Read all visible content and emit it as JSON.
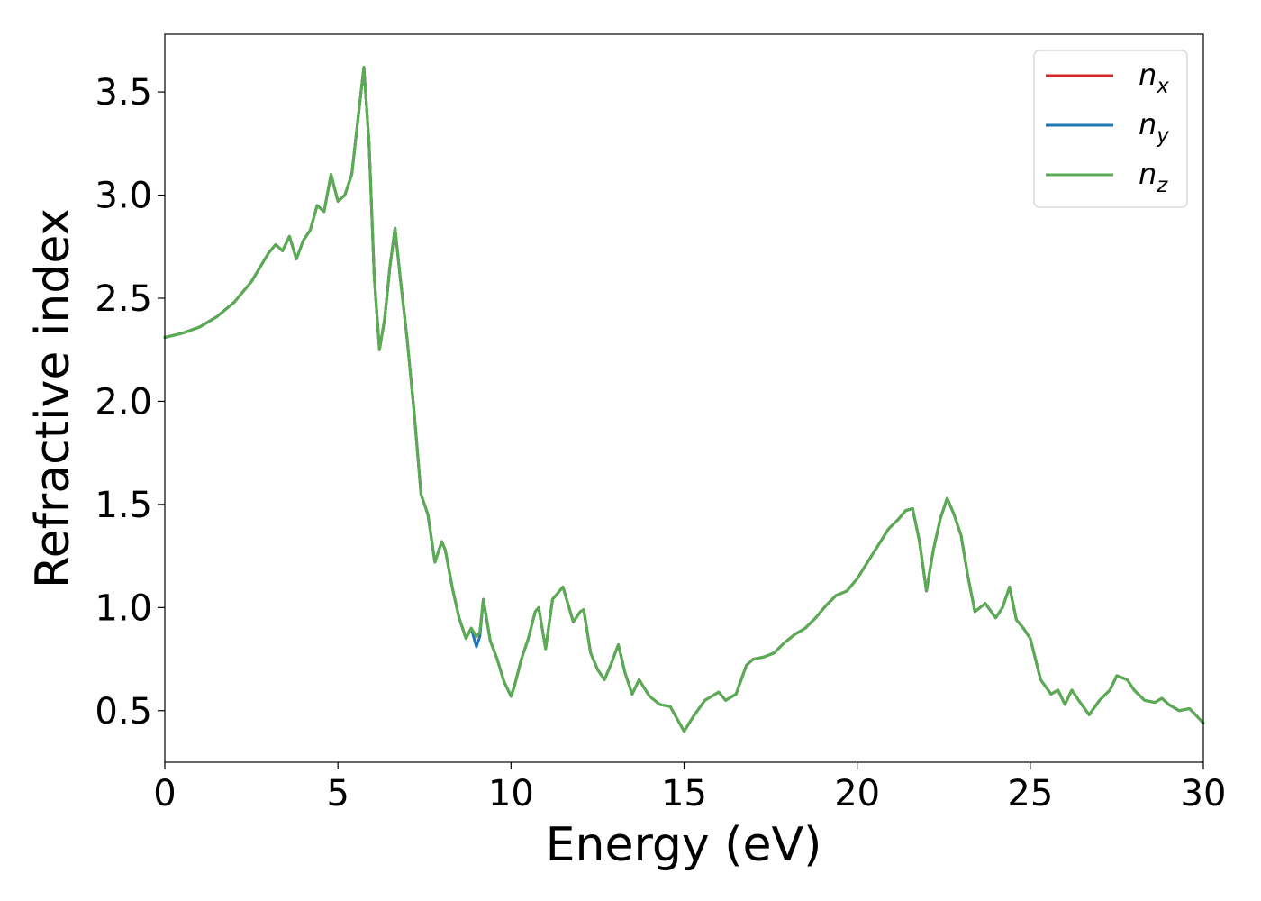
{
  "chart_data": {
    "type": "line",
    "title": "",
    "xlabel": "Energy (eV)",
    "ylabel": "Refractive index",
    "xlim": [
      0,
      30
    ],
    "ylim": [
      0.25,
      3.78
    ],
    "xticks": [
      "0",
      "5",
      "10",
      "15",
      "20",
      "25",
      "30"
    ],
    "xtick_values": [
      0,
      5,
      10,
      15,
      20,
      25,
      30
    ],
    "yticks": [
      "0.5",
      "1.0",
      "1.5",
      "2.0",
      "2.5",
      "3.0",
      "3.5"
    ],
    "ytick_values": [
      0.5,
      1.0,
      1.5,
      2.0,
      2.5,
      3.0,
      3.5
    ],
    "grid": false,
    "legend_position": "top-right",
    "series": [
      {
        "name": "n",
        "subscript": "x",
        "color": "#d62728",
        "x": [
          0,
          0.5,
          1,
          1.5,
          2,
          2.5,
          3,
          3.2,
          3.4,
          3.6,
          3.8,
          4,
          4.2,
          4.4,
          4.6,
          4.8,
          5,
          5.2,
          5.4,
          5.6,
          5.75,
          5.9,
          6.05,
          6.2,
          6.35,
          6.5,
          6.65,
          6.8,
          7,
          7.2,
          7.4,
          7.6,
          7.8,
          8,
          8.1,
          8.3,
          8.5,
          8.7,
          8.85,
          9,
          9.1,
          9.2,
          9.4,
          9.6,
          9.8,
          10,
          10.1,
          10.3,
          10.5,
          10.7,
          10.8,
          11,
          11.2,
          11.5,
          11.8,
          12,
          12.1,
          12.3,
          12.5,
          12.7,
          12.9,
          13.1,
          13.3,
          13.5,
          13.7,
          14,
          14.3,
          14.6,
          15,
          15.3,
          15.6,
          15.8,
          16,
          16.2,
          16.5,
          16.8,
          17,
          17.3,
          17.6,
          17.9,
          18.2,
          18.5,
          18.8,
          19.1,
          19.4,
          19.7,
          20,
          20.3,
          20.6,
          20.9,
          21.2,
          21.4,
          21.6,
          21.8,
          22,
          22.2,
          22.4,
          22.6,
          22.8,
          23,
          23.2,
          23.4,
          23.7,
          24,
          24.2,
          24.4,
          24.6,
          24.8,
          25,
          25.3,
          25.6,
          25.8,
          26,
          26.2,
          26.4,
          26.7,
          27,
          27.3,
          27.5,
          27.8,
          28,
          28.3,
          28.6,
          28.8,
          29,
          29.3,
          29.6,
          30
        ],
        "y": [
          2.31,
          2.33,
          2.36,
          2.41,
          2.48,
          2.58,
          2.72,
          2.76,
          2.73,
          2.8,
          2.69,
          2.78,
          2.83,
          2.95,
          2.92,
          3.1,
          2.97,
          3.0,
          3.1,
          3.4,
          3.62,
          3.25,
          2.6,
          2.25,
          2.4,
          2.65,
          2.84,
          2.6,
          2.3,
          1.95,
          1.55,
          1.45,
          1.22,
          1.32,
          1.28,
          1.1,
          0.95,
          0.85,
          0.9,
          0.86,
          0.88,
          1.04,
          0.84,
          0.75,
          0.64,
          0.57,
          0.62,
          0.75,
          0.85,
          0.98,
          1.0,
          0.8,
          1.04,
          1.1,
          0.93,
          0.98,
          0.99,
          0.78,
          0.7,
          0.65,
          0.73,
          0.82,
          0.68,
          0.58,
          0.65,
          0.57,
          0.53,
          0.52,
          0.4,
          0.48,
          0.55,
          0.57,
          0.59,
          0.55,
          0.58,
          0.72,
          0.75,
          0.76,
          0.78,
          0.83,
          0.87,
          0.9,
          0.95,
          1.01,
          1.06,
          1.08,
          1.14,
          1.22,
          1.3,
          1.38,
          1.43,
          1.47,
          1.48,
          1.32,
          1.08,
          1.28,
          1.43,
          1.53,
          1.45,
          1.35,
          1.15,
          0.98,
          1.02,
          0.95,
          1.0,
          1.1,
          0.94,
          0.9,
          0.85,
          0.65,
          0.58,
          0.6,
          0.53,
          0.6,
          0.55,
          0.48,
          0.55,
          0.6,
          0.67,
          0.65,
          0.6,
          0.55,
          0.54,
          0.56,
          0.53,
          0.5,
          0.51,
          0.44
        ]
      },
      {
        "name": "n",
        "subscript": "y",
        "color": "#1f77b4",
        "x": [
          0,
          0.5,
          1,
          1.5,
          2,
          2.5,
          3,
          3.2,
          3.4,
          3.6,
          3.8,
          4,
          4.2,
          4.4,
          4.6,
          4.8,
          5,
          5.2,
          5.4,
          5.6,
          5.75,
          5.9,
          6.05,
          6.2,
          6.35,
          6.5,
          6.65,
          6.8,
          7,
          7.2,
          7.4,
          7.6,
          7.8,
          8,
          8.1,
          8.3,
          8.5,
          8.7,
          8.85,
          9,
          9.1,
          9.2,
          9.4,
          9.6,
          9.8,
          10,
          10.1,
          10.3,
          10.5,
          10.7,
          10.8,
          11,
          11.2,
          11.5,
          11.8,
          12,
          12.1,
          12.3,
          12.5,
          12.7,
          12.9,
          13.1,
          13.3,
          13.5,
          13.7,
          14,
          14.3,
          14.6,
          15,
          15.3,
          15.6,
          15.8,
          16,
          16.2,
          16.5,
          16.8,
          17,
          17.3,
          17.6,
          17.9,
          18.2,
          18.5,
          18.8,
          19.1,
          19.4,
          19.7,
          20,
          20.3,
          20.6,
          20.9,
          21.2,
          21.4,
          21.6,
          21.8,
          22,
          22.2,
          22.4,
          22.6,
          22.8,
          23,
          23.2,
          23.4,
          23.7,
          24,
          24.2,
          24.4,
          24.6,
          24.8,
          25,
          25.3,
          25.6,
          25.8,
          26,
          26.2,
          26.4,
          26.7,
          27,
          27.3,
          27.5,
          27.8,
          28,
          28.3,
          28.6,
          28.8,
          29,
          29.3,
          29.6,
          30
        ],
        "y": [
          2.31,
          2.33,
          2.36,
          2.41,
          2.48,
          2.58,
          2.72,
          2.76,
          2.73,
          2.8,
          2.69,
          2.78,
          2.83,
          2.95,
          2.92,
          3.1,
          2.97,
          3.0,
          3.1,
          3.4,
          3.62,
          3.25,
          2.6,
          2.25,
          2.4,
          2.65,
          2.84,
          2.6,
          2.3,
          1.95,
          1.55,
          1.45,
          1.22,
          1.32,
          1.28,
          1.1,
          0.95,
          0.85,
          0.9,
          0.81,
          0.86,
          1.04,
          0.84,
          0.75,
          0.64,
          0.57,
          0.62,
          0.75,
          0.85,
          0.98,
          1.0,
          0.8,
          1.04,
          1.1,
          0.93,
          0.98,
          0.99,
          0.78,
          0.7,
          0.65,
          0.73,
          0.82,
          0.68,
          0.58,
          0.65,
          0.57,
          0.53,
          0.52,
          0.4,
          0.48,
          0.55,
          0.57,
          0.59,
          0.55,
          0.58,
          0.72,
          0.75,
          0.76,
          0.78,
          0.83,
          0.87,
          0.9,
          0.95,
          1.01,
          1.06,
          1.08,
          1.14,
          1.22,
          1.3,
          1.38,
          1.43,
          1.47,
          1.48,
          1.32,
          1.08,
          1.28,
          1.43,
          1.53,
          1.45,
          1.35,
          1.15,
          0.98,
          1.02,
          0.95,
          1.0,
          1.1,
          0.94,
          0.9,
          0.85,
          0.65,
          0.58,
          0.6,
          0.53,
          0.6,
          0.55,
          0.48,
          0.55,
          0.6,
          0.67,
          0.65,
          0.6,
          0.55,
          0.54,
          0.56,
          0.53,
          0.5,
          0.51,
          0.44
        ]
      },
      {
        "name": "n",
        "subscript": "z",
        "color": "#5aac50",
        "x": [
          0,
          0.5,
          1,
          1.5,
          2,
          2.5,
          3,
          3.2,
          3.4,
          3.6,
          3.8,
          4,
          4.2,
          4.4,
          4.6,
          4.8,
          5,
          5.2,
          5.4,
          5.6,
          5.75,
          5.9,
          6.05,
          6.2,
          6.35,
          6.5,
          6.65,
          6.8,
          7,
          7.2,
          7.4,
          7.6,
          7.8,
          8,
          8.1,
          8.3,
          8.5,
          8.7,
          8.85,
          9,
          9.1,
          9.2,
          9.4,
          9.6,
          9.8,
          10,
          10.1,
          10.3,
          10.5,
          10.7,
          10.8,
          11,
          11.2,
          11.5,
          11.8,
          12,
          12.1,
          12.3,
          12.5,
          12.7,
          12.9,
          13.1,
          13.3,
          13.5,
          13.7,
          14,
          14.3,
          14.6,
          15,
          15.3,
          15.6,
          15.8,
          16,
          16.2,
          16.5,
          16.8,
          17,
          17.3,
          17.6,
          17.9,
          18.2,
          18.5,
          18.8,
          19.1,
          19.4,
          19.7,
          20,
          20.3,
          20.6,
          20.9,
          21.2,
          21.4,
          21.6,
          21.8,
          22,
          22.2,
          22.4,
          22.6,
          22.8,
          23,
          23.2,
          23.4,
          23.7,
          24,
          24.2,
          24.4,
          24.6,
          24.8,
          25,
          25.3,
          25.6,
          25.8,
          26,
          26.2,
          26.4,
          26.7,
          27,
          27.3,
          27.5,
          27.8,
          28,
          28.3,
          28.6,
          28.8,
          29,
          29.3,
          29.6,
          30
        ],
        "y": [
          2.31,
          2.33,
          2.36,
          2.41,
          2.48,
          2.58,
          2.72,
          2.76,
          2.73,
          2.8,
          2.69,
          2.78,
          2.83,
          2.95,
          2.92,
          3.1,
          2.97,
          3.0,
          3.1,
          3.4,
          3.62,
          3.25,
          2.6,
          2.25,
          2.4,
          2.65,
          2.84,
          2.6,
          2.3,
          1.95,
          1.55,
          1.45,
          1.22,
          1.32,
          1.28,
          1.1,
          0.95,
          0.85,
          0.9,
          0.86,
          0.88,
          1.04,
          0.84,
          0.75,
          0.64,
          0.57,
          0.62,
          0.75,
          0.85,
          0.98,
          1.0,
          0.8,
          1.04,
          1.1,
          0.93,
          0.98,
          0.99,
          0.78,
          0.7,
          0.65,
          0.73,
          0.82,
          0.68,
          0.58,
          0.65,
          0.57,
          0.53,
          0.52,
          0.4,
          0.48,
          0.55,
          0.57,
          0.59,
          0.55,
          0.58,
          0.72,
          0.75,
          0.76,
          0.78,
          0.83,
          0.87,
          0.9,
          0.95,
          1.01,
          1.06,
          1.08,
          1.14,
          1.22,
          1.3,
          1.38,
          1.43,
          1.47,
          1.48,
          1.32,
          1.08,
          1.28,
          1.43,
          1.53,
          1.45,
          1.35,
          1.15,
          0.98,
          1.02,
          0.95,
          1.0,
          1.1,
          0.94,
          0.9,
          0.85,
          0.65,
          0.58,
          0.6,
          0.53,
          0.6,
          0.55,
          0.48,
          0.55,
          0.6,
          0.67,
          0.65,
          0.6,
          0.55,
          0.54,
          0.56,
          0.53,
          0.5,
          0.51,
          0.44
        ]
      }
    ]
  }
}
